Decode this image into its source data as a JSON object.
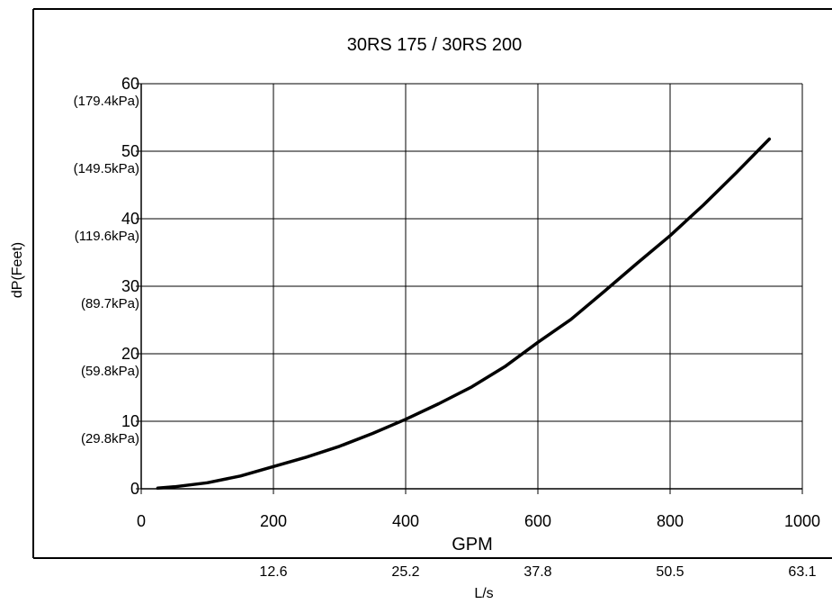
{
  "chart_data": {
    "type": "line",
    "title": "30RS 175 / 30RS 200",
    "xlabel": "GPM",
    "ylabel": "dP(Feet)",
    "xlim": [
      0,
      1000
    ],
    "ylim": [
      0,
      60
    ],
    "grid": true,
    "x_ticks": [
      "0",
      "200",
      "400",
      "600",
      "800",
      "1000"
    ],
    "y_ticks": [
      {
        "value": "0",
        "sub": ""
      },
      {
        "value": "10",
        "sub": "(29.8kPa)"
      },
      {
        "value": "20",
        "sub": "(59.8kPa)"
      },
      {
        "value": "30",
        "sub": "(89.7kPa)"
      },
      {
        "value": "40",
        "sub": "(119.6kPa)"
      },
      {
        "value": "50",
        "sub": "(149.5kPa)"
      },
      {
        "value": "60",
        "sub": "(179.4kPa)"
      }
    ],
    "secondary_x": {
      "label": "L/s",
      "ticks": [
        {
          "gpm": 200,
          "label": "12.6"
        },
        {
          "gpm": 400,
          "label": "25.2"
        },
        {
          "gpm": 600,
          "label": "37.8"
        },
        {
          "gpm": 800,
          "label": "50.5"
        },
        {
          "gpm": 1000,
          "label": "63.1"
        }
      ]
    },
    "series": [
      {
        "x": [
          25,
          50,
          100,
          150,
          200,
          250,
          300,
          350,
          400,
          450,
          500,
          550,
          600,
          650,
          700,
          750,
          800,
          850,
          900,
          950
        ],
        "y": [
          0.1,
          0.3,
          0.9,
          1.9,
          3.3,
          4.7,
          6.3,
          8.2,
          10.3,
          12.6,
          15.1,
          18.1,
          21.7,
          25.1,
          29.2,
          33.4,
          37.5,
          42.0,
          46.8,
          51.8
        ]
      }
    ]
  },
  "colors": {
    "line": "#000000",
    "grid": "#000000",
    "background": "#ffffff"
  }
}
